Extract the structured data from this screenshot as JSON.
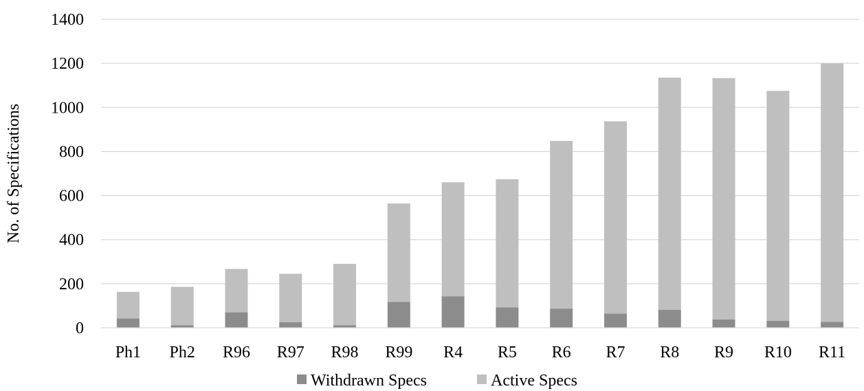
{
  "chart_data": {
    "type": "bar",
    "stacked": true,
    "title": "",
    "xlabel": "",
    "ylabel": "No. of Specifications",
    "ylim": [
      0,
      1400
    ],
    "yticks": [
      0,
      200,
      400,
      600,
      800,
      1000,
      1200,
      1400
    ],
    "grid": true,
    "legend_position": "bottom",
    "categories": [
      "Ph1",
      "Ph2",
      "R96",
      "R97",
      "R98",
      "R99",
      "R4",
      "R5",
      "R6",
      "R7",
      "R8",
      "R9",
      "R10",
      "R11"
    ],
    "series": [
      {
        "name": "Withdrawn Specs",
        "color": "#8c8c8c",
        "values": [
          42,
          12,
          70,
          25,
          12,
          117,
          143,
          93,
          87,
          64,
          82,
          38,
          32,
          27
        ]
      },
      {
        "name": "Active Specs",
        "color": "#bfbfbf",
        "values": [
          121,
          174,
          197,
          220,
          278,
          447,
          517,
          581,
          761,
          873,
          1053,
          1095,
          1043,
          1173
        ]
      }
    ],
    "grid_color": "#d9d9d9"
  }
}
